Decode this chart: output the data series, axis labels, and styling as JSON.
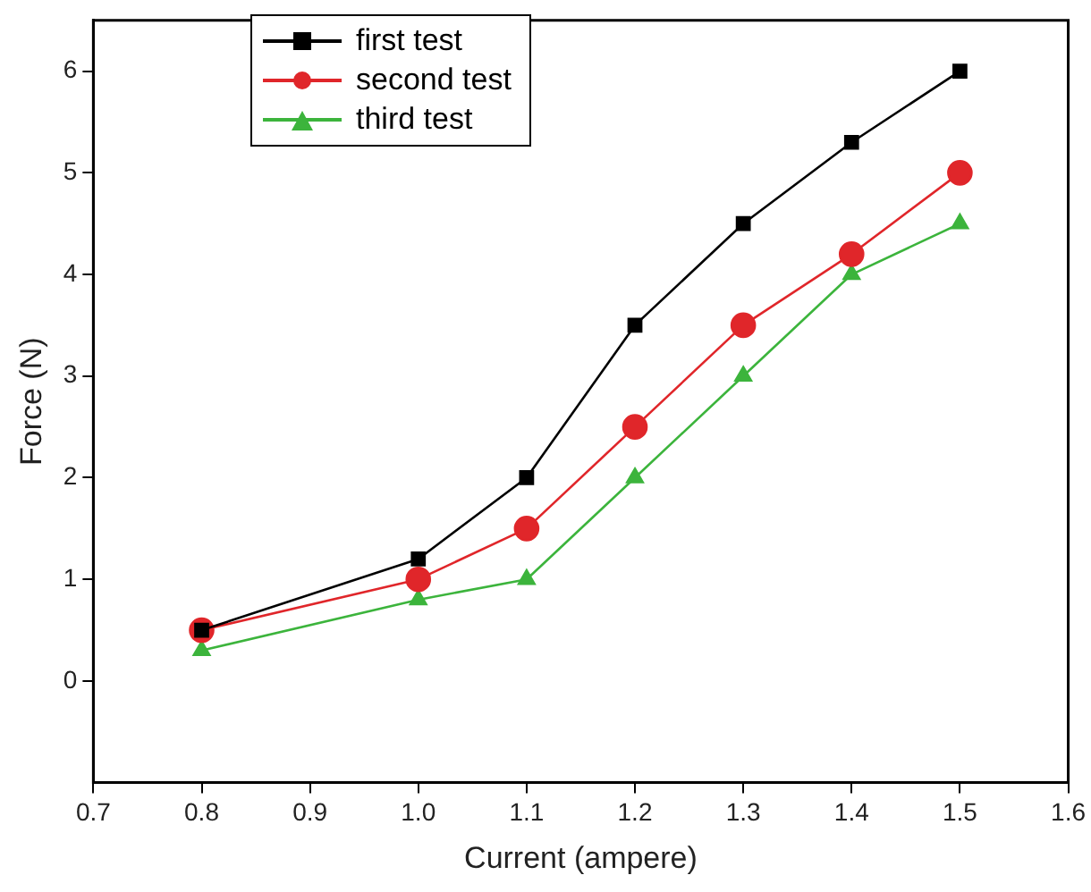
{
  "chart_data": {
    "type": "line",
    "xlabel": "Current (ampere)",
    "ylabel": "Force (N)",
    "x": [
      0.8,
      1.0,
      1.1,
      1.2,
      1.3,
      1.4,
      1.5
    ],
    "series": [
      {
        "name": "first test",
        "color": "#000000",
        "marker": "square",
        "values": [
          0.5,
          1.2,
          2.0,
          3.5,
          4.5,
          5.3,
          6.0
        ]
      },
      {
        "name": "second test",
        "color": "#e0262a",
        "marker": "circle",
        "values": [
          0.5,
          1.0,
          1.5,
          2.5,
          3.5,
          4.2,
          5.0
        ]
      },
      {
        "name": "third test",
        "color": "#3cb43c",
        "marker": "triangle",
        "values": [
          0.3,
          0.8,
          1.0,
          2.0,
          3.0,
          4.0,
          4.5
        ]
      }
    ],
    "xlim": [
      0.7,
      1.6
    ],
    "xticks": [
      0.7,
      0.8,
      0.9,
      {
        "value": 1.0,
        "label": "1.0"
      },
      1.1,
      1.2,
      1.3,
      1.4,
      1.5,
      1.6
    ],
    "ylim": [
      -1,
      6.5
    ],
    "yticks": [
      0,
      1,
      2,
      3,
      4,
      5,
      6
    ],
    "grid": false,
    "legend": "top left",
    "line_style": "solid"
  }
}
